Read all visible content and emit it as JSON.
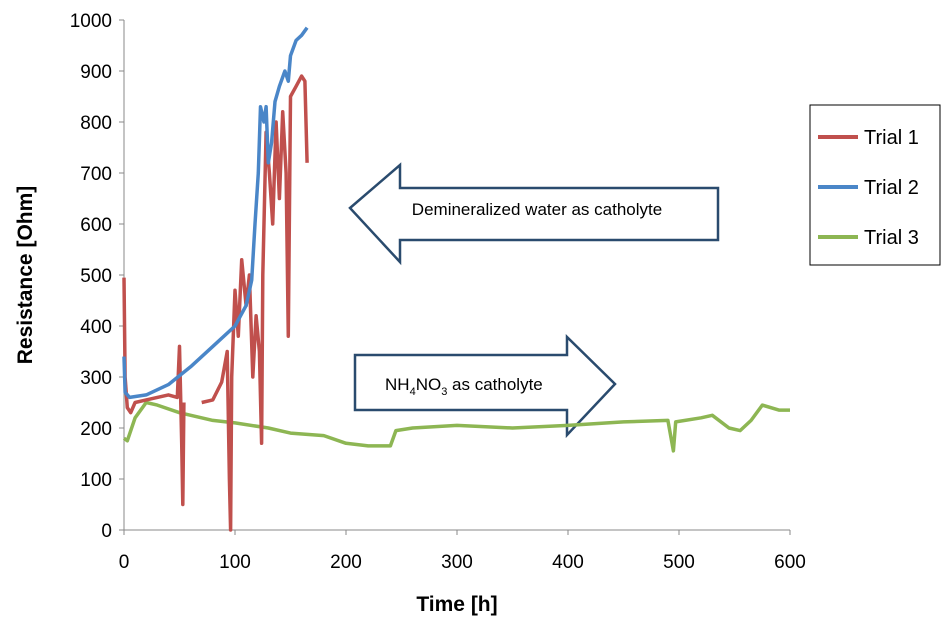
{
  "chart_data": {
    "type": "line",
    "xlabel": "Time [h]",
    "ylabel": "Resistance  [Ohm]",
    "xlim": [
      0,
      600
    ],
    "xticks": [
      0,
      100,
      200,
      300,
      400,
      500,
      600
    ],
    "ylim": [
      0,
      1000
    ],
    "yticks": [
      0,
      100,
      200,
      300,
      400,
      500,
      600,
      700,
      800,
      900,
      1000
    ],
    "grid": false,
    "legend": "right",
    "series": [
      {
        "name": "Trial 1",
        "color": "#c0504d",
        "x": [
          0,
          1,
          3,
          6,
          10,
          20,
          30,
          40,
          48,
          50,
          52,
          53,
          54,
          60,
          70,
          80,
          88,
          93,
          95,
          96,
          97,
          100,
          103,
          106,
          110,
          113,
          116,
          119,
          122,
          124,
          125,
          128,
          131,
          134,
          137,
          140,
          143,
          146,
          148,
          150,
          155,
          160,
          163,
          165
        ],
        "values": [
          495,
          300,
          240,
          230,
          250,
          255,
          260,
          265,
          260,
          360,
          170,
          50,
          250,
          null,
          250,
          255,
          290,
          350,
          100,
          0,
          300,
          470,
          380,
          530,
          440,
          500,
          300,
          420,
          350,
          170,
          500,
          780,
          700,
          600,
          800,
          650,
          820,
          700,
          380,
          850,
          870,
          890,
          880,
          720
        ]
      },
      {
        "name": "Trial 2",
        "color": "#4a86c8",
        "x": [
          0,
          1,
          5,
          20,
          40,
          60,
          80,
          100,
          110,
          115,
          118,
          121,
          123,
          126,
          128,
          130,
          133,
          136,
          140,
          145,
          148,
          150,
          155,
          160,
          165
        ],
        "values": [
          340,
          270,
          260,
          265,
          285,
          320,
          360,
          400,
          440,
          490,
          600,
          700,
          830,
          800,
          830,
          720,
          760,
          840,
          870,
          900,
          880,
          930,
          960,
          970,
          985
        ]
      },
      {
        "name": "Trial 3",
        "color": "#8db653",
        "x": [
          0,
          3,
          10,
          20,
          30,
          50,
          80,
          100,
          130,
          150,
          180,
          200,
          220,
          240,
          245,
          260,
          300,
          350,
          400,
          450,
          490,
          495,
          497,
          520,
          530,
          545,
          555,
          565,
          575,
          590,
          600
        ],
        "values": [
          180,
          175,
          220,
          250,
          245,
          230,
          215,
          210,
          200,
          190,
          185,
          170,
          165,
          165,
          195,
          200,
          205,
          200,
          205,
          212,
          215,
          155,
          212,
          220,
          225,
          200,
          195,
          215,
          245,
          235,
          235
        ]
      }
    ],
    "annotations": [
      {
        "direction": "left",
        "parts": [
          {
            "text": "Demineralized  water as catholyte"
          }
        ]
      },
      {
        "direction": "right",
        "parts": [
          {
            "text": "NH"
          },
          {
            "text": "4",
            "subscript": true
          },
          {
            "text": "NO"
          },
          {
            "text": "3",
            "subscript": true
          },
          {
            "text": " as catholyte"
          }
        ]
      }
    ]
  }
}
